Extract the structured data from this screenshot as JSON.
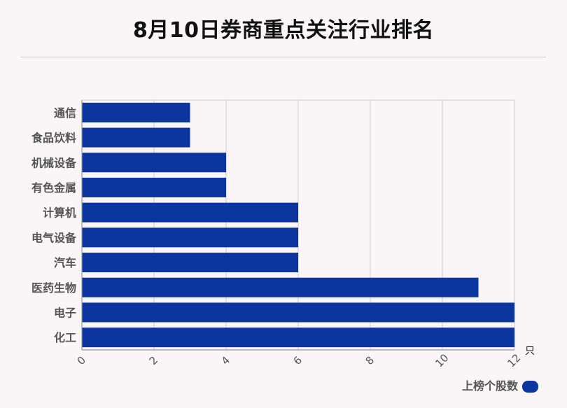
{
  "chart_data": {
    "type": "bar",
    "orientation": "horizontal",
    "title": "8月10日券商重点关注行业排名",
    "categories": [
      "通信",
      "食品饮料",
      "机械设备",
      "有色金属",
      "计算机",
      "电气设备",
      "汽车",
      "医药生物",
      "电子",
      "化工"
    ],
    "series": [
      {
        "name": "上榜个股数",
        "values": [
          3,
          3,
          4,
          4,
          6,
          6,
          6,
          11,
          12,
          12
        ]
      }
    ],
    "x_unit": "只",
    "xlim": [
      0,
      12
    ],
    "x_ticks": [
      0,
      2,
      4,
      6,
      8,
      10,
      12
    ],
    "grid": true,
    "legend_position": "bottom-right",
    "bar_color": "#0c35a0"
  }
}
